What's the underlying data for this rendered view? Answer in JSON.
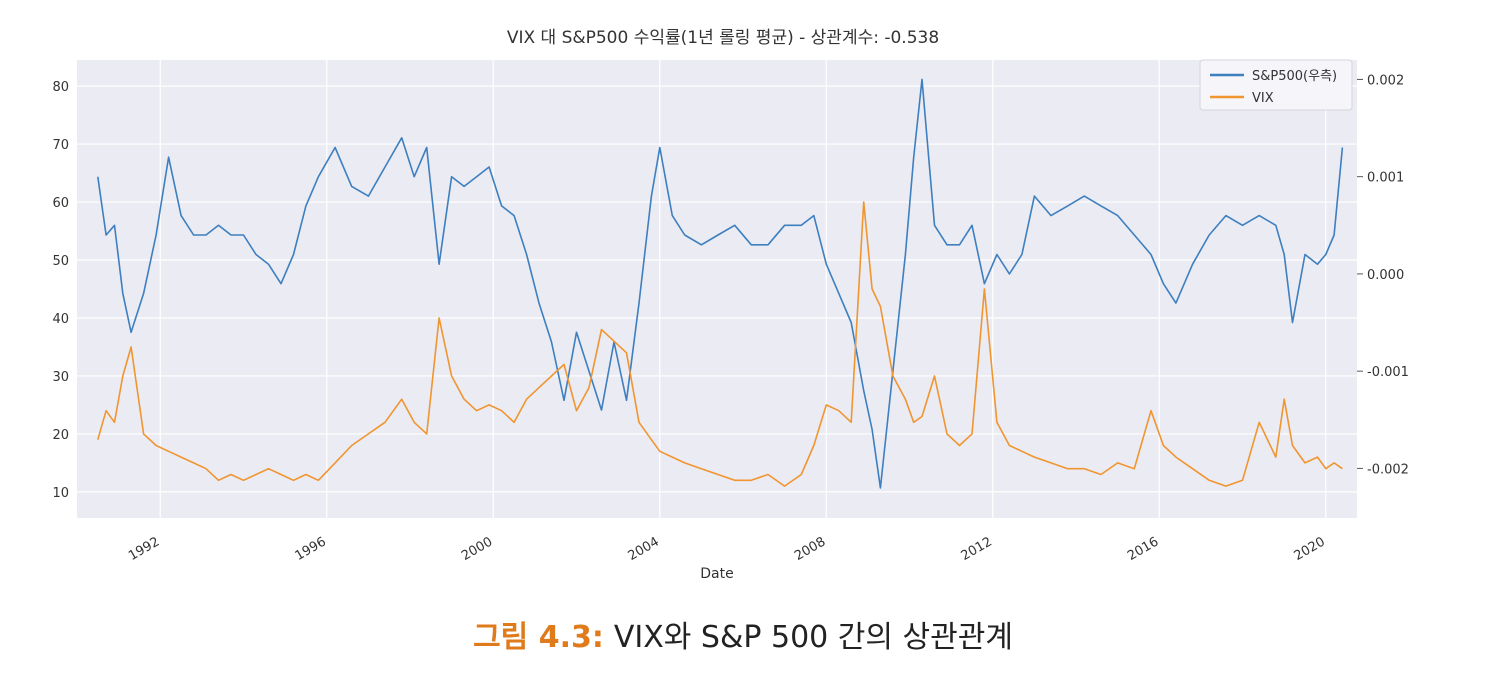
{
  "chart_data": {
    "type": "line",
    "title": "VIX 대 S&P500 수익률(1년 롤링 평균) - 상관계수: -0.538",
    "xlabel": "Date",
    "ylabel": "",
    "y2label": "",
    "xlim": [
      1990.0,
      2020.75
    ],
    "ylim": [
      5.5,
      84.5
    ],
    "y2lim": [
      -0.00251,
      0.0022
    ],
    "x_ticks": [
      "1992",
      "1996",
      "2000",
      "2004",
      "2008",
      "2012",
      "2016",
      "2020"
    ],
    "y_ticks": [
      "10",
      "20",
      "30",
      "40",
      "50",
      "60",
      "70",
      "80"
    ],
    "y2_ticks": [
      "-0.002",
      "-0.001",
      "0.000",
      "0.001",
      "0.002"
    ],
    "grid": true,
    "legend_position": "top-right",
    "series": [
      {
        "name": "S&P500(우측)",
        "axis": "right",
        "color": "#3d7fbf",
        "x": [
          1990.5,
          1990.7,
          1990.9,
          1991.1,
          1991.3,
          1991.6,
          1991.9,
          1992.2,
          1992.5,
          1992.8,
          1993.1,
          1993.4,
          1993.7,
          1994.0,
          1994.3,
          1994.6,
          1994.9,
          1995.2,
          1995.5,
          1995.8,
          1996.2,
          1996.6,
          1997.0,
          1997.4,
          1997.8,
          1998.1,
          1998.4,
          1998.7,
          1999.0,
          1999.3,
          1999.6,
          1999.9,
          2000.2,
          2000.5,
          2000.8,
          2001.1,
          2001.4,
          2001.7,
          2002.0,
          2002.3,
          2002.6,
          2002.9,
          2003.2,
          2003.5,
          2003.8,
          2004.0,
          2004.3,
          2004.6,
          2005.0,
          2005.4,
          2005.8,
          2006.2,
          2006.6,
          2007.0,
          2007.4,
          2007.7,
          2008.0,
          2008.3,
          2008.6,
          2008.9,
          2009.1,
          2009.3,
          2009.6,
          2009.9,
          2010.1,
          2010.3,
          2010.6,
          2010.9,
          2011.2,
          2011.5,
          2011.8,
          2012.1,
          2012.4,
          2012.7,
          2013.0,
          2013.4,
          2013.8,
          2014.2,
          2014.6,
          2015.0,
          2015.4,
          2015.8,
          2016.1,
          2016.4,
          2016.8,
          2017.2,
          2017.6,
          2018.0,
          2018.4,
          2018.8,
          2019.0,
          2019.2,
          2019.5,
          2019.8,
          2020.0,
          2020.2,
          2020.4
        ],
        "values": [
          0.001,
          0.0004,
          0.0005,
          -0.0002,
          -0.0006,
          -0.0002,
          0.0004,
          0.0012,
          0.0006,
          0.0004,
          0.0004,
          0.0005,
          0.0004,
          0.0004,
          0.0002,
          0.0001,
          -0.0001,
          0.0002,
          0.0007,
          0.001,
          0.0013,
          0.0009,
          0.0008,
          0.0011,
          0.0014,
          0.001,
          0.0013,
          0.0001,
          0.001,
          0.0009,
          0.001,
          0.0011,
          0.0007,
          0.0006,
          0.0002,
          -0.0003,
          -0.0007,
          -0.0013,
          -0.0006,
          -0.001,
          -0.0014,
          -0.0007,
          -0.0013,
          -0.0003,
          0.0008,
          0.0013,
          0.0006,
          0.0004,
          0.0003,
          0.0004,
          0.0005,
          0.0003,
          0.0003,
          0.0005,
          0.0005,
          0.0006,
          0.0001,
          -0.0002,
          -0.0005,
          -0.0012,
          -0.0016,
          -0.0022,
          -0.001,
          0.0002,
          0.0012,
          0.002,
          0.0005,
          0.0003,
          0.0003,
          0.0005,
          -0.0001,
          0.0002,
          0.0,
          0.0002,
          0.0008,
          0.0006,
          0.0007,
          0.0008,
          0.0007,
          0.0006,
          0.0004,
          0.0002,
          -0.0001,
          -0.0003,
          0.0001,
          0.0004,
          0.0006,
          0.0005,
          0.0006,
          0.0005,
          0.0002,
          -0.0005,
          0.0002,
          0.0001,
          0.0002,
          0.0004,
          0.0013
        ]
      },
      {
        "name": "VIX",
        "axis": "left",
        "color": "#f0952f",
        "x": [
          1990.5,
          1990.7,
          1990.9,
          1991.1,
          1991.3,
          1991.6,
          1991.9,
          1992.2,
          1992.5,
          1992.8,
          1993.1,
          1993.4,
          1993.7,
          1994.0,
          1994.3,
          1994.6,
          1994.9,
          1995.2,
          1995.5,
          1995.8,
          1996.2,
          1996.6,
          1997.0,
          1997.4,
          1997.8,
          1998.1,
          1998.4,
          1998.7,
          1999.0,
          1999.3,
          1999.6,
          1999.9,
          2000.2,
          2000.5,
          2000.8,
          2001.1,
          2001.4,
          2001.7,
          2002.0,
          2002.3,
          2002.6,
          2002.9,
          2003.2,
          2003.5,
          2003.8,
          2004.0,
          2004.3,
          2004.6,
          2005.0,
          2005.4,
          2005.8,
          2006.2,
          2006.6,
          2007.0,
          2007.4,
          2007.7,
          2008.0,
          2008.3,
          2008.6,
          2008.9,
          2009.1,
          2009.3,
          2009.6,
          2009.9,
          2010.1,
          2010.3,
          2010.6,
          2010.9,
          2011.2,
          2011.5,
          2011.8,
          2012.1,
          2012.4,
          2012.7,
          2013.0,
          2013.4,
          2013.8,
          2014.2,
          2014.6,
          2015.0,
          2015.4,
          2015.8,
          2016.1,
          2016.4,
          2016.8,
          2017.2,
          2017.6,
          2018.0,
          2018.4,
          2018.8,
          2019.0,
          2019.2,
          2019.5,
          2019.8,
          2020.0,
          2020.2,
          2020.4
        ],
        "values": [
          19,
          24,
          22,
          30,
          35,
          20,
          18,
          17,
          16,
          15,
          14,
          12,
          13,
          12,
          13,
          14,
          13,
          12,
          13,
          12,
          15,
          18,
          20,
          22,
          26,
          22,
          20,
          40,
          30,
          26,
          24,
          25,
          24,
          22,
          26,
          28,
          30,
          32,
          24,
          28,
          38,
          36,
          34,
          22,
          19,
          17,
          16,
          15,
          14,
          13,
          12,
          12,
          13,
          11,
          13,
          18,
          25,
          24,
          22,
          60,
          45,
          42,
          30,
          26,
          22,
          23,
          30,
          20,
          18,
          20,
          45,
          22,
          18,
          17,
          16,
          15,
          14,
          14,
          13,
          15,
          14,
          24,
          18,
          16,
          14,
          12,
          11,
          12,
          22,
          16,
          26,
          18,
          15,
          16,
          14,
          15,
          14
        ]
      }
    ]
  },
  "caption": {
    "label": "그림 4.3:",
    "text": "VIX와 S&P 500 간의 상관관계"
  }
}
